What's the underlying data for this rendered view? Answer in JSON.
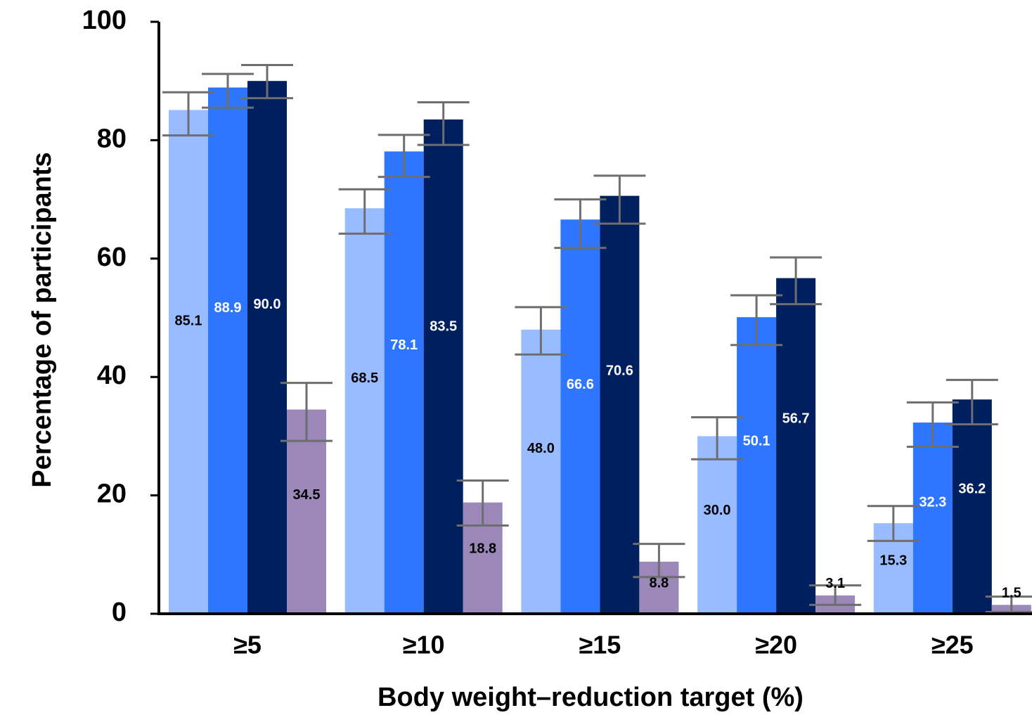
{
  "chart_data": {
    "type": "bar",
    "xlabel": "Body weight–reduction target (%)",
    "ylabel": "Percentage of participants",
    "ylim": [
      0,
      100
    ],
    "yticks": [
      "0",
      "20",
      "40",
      "60",
      "80",
      "100"
    ],
    "categories": [
      "≥5",
      "≥10",
      "≥15",
      "≥20",
      "≥25"
    ],
    "grid": false,
    "legend": "none",
    "series": [
      {
        "color": "#99bbff",
        "label_color": "#000000",
        "values": [
          85.1,
          68.5,
          48.0,
          30.0,
          15.3
        ],
        "labels": [
          "85.1",
          "68.5",
          "48.0",
          "30.0",
          "15.3"
        ],
        "error_low": [
          80.8,
          64.2,
          43.8,
          26.1,
          12.3
        ],
        "error_high": [
          88.1,
          71.7,
          51.8,
          33.2,
          18.2
        ]
      },
      {
        "color": "#2e75ff",
        "label_color": "#ffffff",
        "values": [
          88.9,
          78.1,
          66.6,
          50.1,
          32.3
        ],
        "labels": [
          "88.9",
          "78.1",
          "66.6",
          "50.1",
          "32.3"
        ],
        "error_low": [
          85.5,
          73.8,
          61.8,
          45.4,
          28.2
        ],
        "error_high": [
          91.2,
          80.9,
          70.0,
          53.8,
          35.7
        ]
      },
      {
        "color": "#001f5f",
        "label_color": "#ffffff",
        "values": [
          90.0,
          83.5,
          70.6,
          56.7,
          36.2
        ],
        "labels": [
          "90.0",
          "83.5",
          "70.6",
          "56.7",
          "36.2"
        ],
        "error_low": [
          87.1,
          79.2,
          65.9,
          52.3,
          32.0
        ],
        "error_high": [
          92.7,
          86.4,
          74.0,
          60.2,
          39.5
        ]
      },
      {
        "color": "#9b87b8",
        "label_color": "#000000",
        "values": [
          34.5,
          18.8,
          8.8,
          3.1,
          1.5
        ],
        "labels": [
          "34.5",
          "18.8",
          "8.8",
          "3.1",
          "1.5"
        ],
        "error_low": [
          29.2,
          14.9,
          6.2,
          1.5,
          0.3
        ],
        "error_high": [
          39.0,
          22.5,
          11.8,
          4.8,
          2.9
        ]
      }
    ]
  }
}
